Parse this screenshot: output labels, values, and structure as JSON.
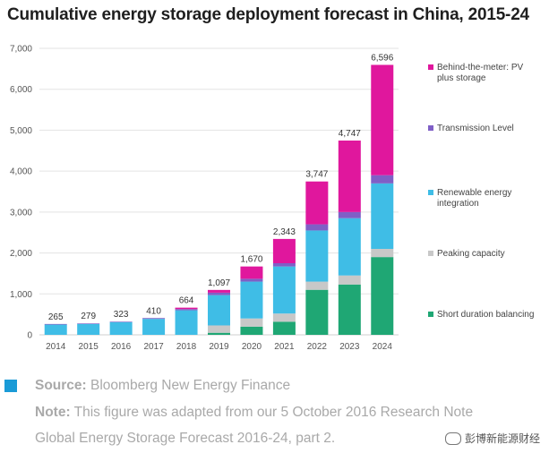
{
  "title": "Cumulative energy storage deployment forecast in China, 2015-24",
  "chart_data": {
    "type": "bar",
    "stacked": true,
    "categories": [
      "2014",
      "2015",
      "2016",
      "2017",
      "2018",
      "2019",
      "2020",
      "2021",
      "2022",
      "2023",
      "2024"
    ],
    "ylim": [
      0,
      7000
    ],
    "yticks": [
      "0",
      "1,000",
      "2,000",
      "3,000",
      "4,000",
      "5,000",
      "6,000",
      "7,000"
    ],
    "grid": true,
    "totals": [
      265,
      279,
      323,
      410,
      664,
      1097,
      1670,
      2343,
      3747,
      4747,
      6596
    ],
    "total_labels": [
      "265",
      "279",
      "323",
      "410",
      "664",
      "1,097",
      "1,670",
      "2,343",
      "3,747",
      "4,747",
      "6,596"
    ],
    "series": [
      {
        "name": "Short duration balancing",
        "color": "#1fa774",
        "values": [
          0,
          0,
          0,
          0,
          0,
          50,
          200,
          320,
          1100,
          1230,
          1900
        ]
      },
      {
        "name": "Peaking capacity",
        "color": "#c8c8c8",
        "values": [
          0,
          0,
          0,
          0,
          0,
          180,
          200,
          200,
          200,
          220,
          200
        ]
      },
      {
        "name": "Renewable energy integration",
        "color": "#3fbde6",
        "values": [
          250,
          265,
          310,
          390,
          600,
          740,
          900,
          1150,
          1250,
          1400,
          1600
        ]
      },
      {
        "name": "Transmission Level",
        "color": "#7f5fc6",
        "values": [
          15,
          14,
          13,
          20,
          30,
          60,
          70,
          80,
          150,
          150,
          200
        ]
      },
      {
        "name": "Behind-the-meter: PV plus storage",
        "color": "#e0179d",
        "values": [
          0,
          0,
          0,
          0,
          34,
          67,
          300,
          593,
          1047,
          1747,
          2696
        ]
      }
    ],
    "legend_placement": "right",
    "legend_order": [
      4,
      3,
      2,
      1,
      0
    ]
  },
  "footer": {
    "accent": "#1a9bd7",
    "source_label": "Source:",
    "source_text": " Bloomberg New Energy Finance",
    "note_label": "Note:",
    "note_text": " This figure was adapted from our 5 October 2016 Research Note",
    "note_text_2": "Global Energy Storage Forecast 2016-24, part 2."
  },
  "watermark": "彭博新能源财经"
}
